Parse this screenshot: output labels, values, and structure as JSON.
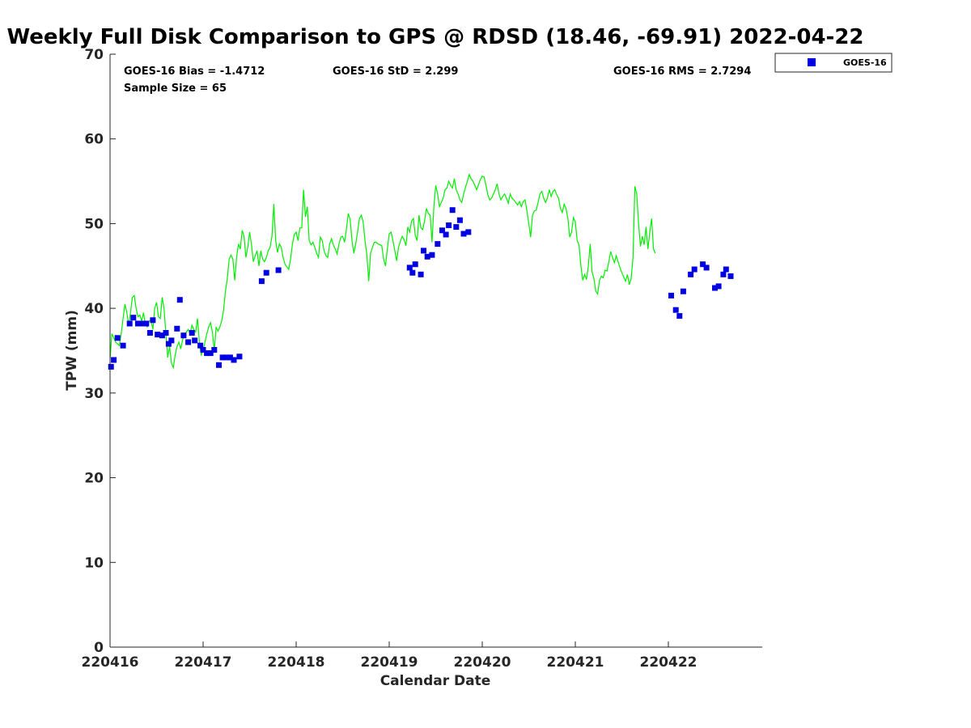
{
  "chart_data": {
    "type": "scatter",
    "title": "Weekly Full Disk Comparison to GPS @ RDSD (18.46, -69.91) 2022-04-22",
    "xlabel": "Calendar Date",
    "ylabel": "TPW (mm)",
    "xlim": [
      0,
      7
    ],
    "ylim": [
      0,
      70
    ],
    "x_ticks": [
      0,
      1,
      2,
      3,
      4,
      5,
      6
    ],
    "x_tick_labels": [
      "220416",
      "220417",
      "220418",
      "220419",
      "220420",
      "220421",
      "220422"
    ],
    "y_ticks": [
      0,
      10,
      20,
      30,
      40,
      50,
      60,
      70
    ],
    "y_tick_labels": [
      "0",
      "10",
      "20",
      "30",
      "40",
      "50",
      "60",
      "70"
    ],
    "grid": false,
    "legend_position": "top-right, outside plot",
    "stats": {
      "bias": "GOES-16 Bias = -1.4712",
      "std": "GOES-16 StD = 2.299",
      "rms": "GOES-16 RMS = 2.7294",
      "sample": "Sample Size = 65"
    },
    "series": [
      {
        "name": "GOES-16",
        "kind": "scatter",
        "marker": "square",
        "color": "#0000e0",
        "points": [
          [
            0.01,
            33.1
          ],
          [
            0.04,
            33.9
          ],
          [
            0.08,
            36.5
          ],
          [
            0.14,
            35.6
          ],
          [
            0.21,
            38.2
          ],
          [
            0.25,
            38.9
          ],
          [
            0.3,
            38.2
          ],
          [
            0.35,
            38.2
          ],
          [
            0.39,
            38.2
          ],
          [
            0.43,
            37.1
          ],
          [
            0.46,
            38.6
          ],
          [
            0.51,
            36.9
          ],
          [
            0.56,
            36.8
          ],
          [
            0.6,
            37.1
          ],
          [
            0.63,
            35.8
          ],
          [
            0.66,
            36.2
          ],
          [
            0.72,
            37.6
          ],
          [
            0.75,
            41.0
          ],
          [
            0.79,
            36.8
          ],
          [
            0.84,
            36.0
          ],
          [
            0.88,
            37.1
          ],
          [
            0.91,
            36.2
          ],
          [
            0.97,
            35.6
          ],
          [
            1.0,
            35.1
          ],
          [
            1.04,
            34.7
          ],
          [
            1.08,
            34.7
          ],
          [
            1.12,
            35.1
          ],
          [
            1.17,
            33.3
          ],
          [
            1.21,
            34.2
          ],
          [
            1.25,
            34.2
          ],
          [
            1.29,
            34.2
          ],
          [
            1.33,
            33.9
          ],
          [
            1.39,
            34.3
          ],
          [
            1.63,
            43.2
          ],
          [
            1.68,
            44.2
          ],
          [
            1.81,
            44.5
          ],
          [
            3.22,
            44.8
          ],
          [
            3.25,
            44.2
          ],
          [
            3.28,
            45.2
          ],
          [
            3.34,
            44.0
          ],
          [
            3.37,
            46.8
          ],
          [
            3.41,
            46.1
          ],
          [
            3.46,
            46.3
          ],
          [
            3.52,
            47.6
          ],
          [
            3.57,
            49.2
          ],
          [
            3.61,
            48.7
          ],
          [
            3.64,
            49.8
          ],
          [
            3.68,
            51.6
          ],
          [
            3.72,
            49.6
          ],
          [
            3.76,
            50.4
          ],
          [
            3.8,
            48.8
          ],
          [
            3.85,
            49.0
          ],
          [
            6.03,
            41.5
          ],
          [
            6.08,
            39.8
          ],
          [
            6.12,
            39.1
          ],
          [
            6.16,
            42.0
          ],
          [
            6.24,
            44.0
          ],
          [
            6.28,
            44.6
          ],
          [
            6.37,
            45.2
          ],
          [
            6.41,
            44.8
          ],
          [
            6.5,
            42.4
          ],
          [
            6.54,
            42.6
          ],
          [
            6.59,
            44.0
          ],
          [
            6.62,
            44.6
          ],
          [
            6.67,
            43.8
          ]
        ]
      },
      {
        "name": "",
        "kind": "line",
        "color": "#00ee00",
        "x_start": 0,
        "x_step": 0.02,
        "values": [
          34.0,
          37.0,
          36.5,
          36.0,
          35.8,
          35.6,
          37.0,
          38.8,
          40.5,
          39.5,
          38.0,
          39.5,
          41.3,
          41.5,
          40.0,
          39.0,
          39.2,
          38.5,
          39.5,
          38.0,
          37.8,
          38.5,
          38.6,
          37.5,
          40.0,
          40.7,
          39.0,
          38.8,
          41.3,
          40.0,
          37.0,
          34.2,
          35.5,
          33.5,
          33.0,
          34.5,
          35.5,
          36.0,
          35.2,
          36.3,
          36.9,
          37.2,
          37.5,
          37.0,
          38.0,
          37.5,
          37.2,
          38.8,
          36.0,
          34.5,
          35.0,
          36.0,
          37.0,
          37.8,
          38.3,
          37.2,
          35.0,
          37.8,
          37.3,
          37.8,
          38.5,
          39.8,
          42.0,
          43.5,
          45.8,
          46.3,
          45.8,
          43.3,
          46.0,
          47.6,
          47.0,
          49.2,
          48.5,
          46.0,
          47.2,
          49.0,
          47.5,
          45.5,
          46.2,
          46.8,
          45.0,
          46.8,
          45.8,
          45.5,
          46.0,
          46.8,
          47.2,
          48.5,
          52.3,
          48.0,
          46.6,
          47.6,
          47.2,
          46.0,
          45.2,
          44.9,
          44.6,
          45.8,
          47.6,
          48.7,
          49.0,
          48.0,
          49.5,
          49.5,
          54.0,
          50.8,
          52.0,
          48.0,
          47.5,
          47.8,
          47.2,
          46.5,
          46.0,
          48.4,
          48.0,
          46.8,
          46.2,
          46.0,
          47.6,
          48.2,
          47.5,
          47.0,
          46.4,
          47.6,
          48.4,
          48.5,
          47.8,
          49.3,
          51.2,
          50.5,
          48.0,
          46.5,
          47.6,
          49.0,
          50.6,
          51.0,
          50.2,
          48.0,
          46.3,
          43.2,
          46.5,
          47.2,
          47.8,
          47.8,
          47.6,
          47.5,
          47.4,
          45.8,
          45.0,
          47.0,
          48.8,
          49.0,
          48.0,
          46.8,
          45.6,
          47.2,
          47.9,
          48.5,
          48.1,
          47.4,
          49.6,
          49.0,
          50.3,
          50.6,
          48.6,
          48.0,
          51.0,
          49.5,
          49.3,
          50.3,
          51.8,
          51.2,
          51.0,
          47.8,
          52.0,
          54.5,
          53.5,
          52.0,
          52.5,
          53.0,
          54.0,
          54.2,
          55.0,
          54.5,
          54.2,
          55.3,
          54.0,
          53.5,
          52.8,
          52.5,
          53.5,
          54.3,
          55.0,
          55.8,
          55.3,
          55.0,
          54.5,
          54.0,
          54.6,
          55.2,
          55.6,
          55.5,
          54.5,
          53.4,
          52.8,
          53.0,
          53.5,
          54.0,
          54.7,
          53.5,
          52.8,
          53.2,
          53.5,
          53.0,
          52.4,
          53.5,
          53.0,
          52.8,
          52.5,
          52.2,
          52.6,
          52.0,
          52.6,
          52.8,
          51.5,
          50.0,
          48.4,
          51.0,
          51.5,
          51.6,
          52.5,
          53.5,
          53.8,
          53.0,
          52.5,
          53.0,
          54.0,
          53.2,
          53.8,
          54.0,
          53.4,
          53.0,
          51.8,
          51.3,
          52.3,
          51.8,
          50.6,
          48.4,
          49.0,
          50.7,
          50.2,
          48.0,
          47.5,
          45.0,
          43.3,
          44.0,
          43.4,
          45.0,
          47.6,
          44.3,
          43.5,
          42.0,
          41.7,
          43.3,
          43.8,
          43.6,
          44.5,
          44.4,
          45.5,
          46.7,
          46.0,
          45.4,
          46.2,
          45.5,
          44.8,
          44.2,
          43.7,
          43.2,
          44.0,
          42.8,
          43.5,
          46.0,
          54.4,
          53.5,
          50.0,
          47.3,
          48.5,
          47.5,
          49.6,
          47.0,
          49.0,
          50.6,
          47.0,
          46.5
        ]
      }
    ]
  }
}
